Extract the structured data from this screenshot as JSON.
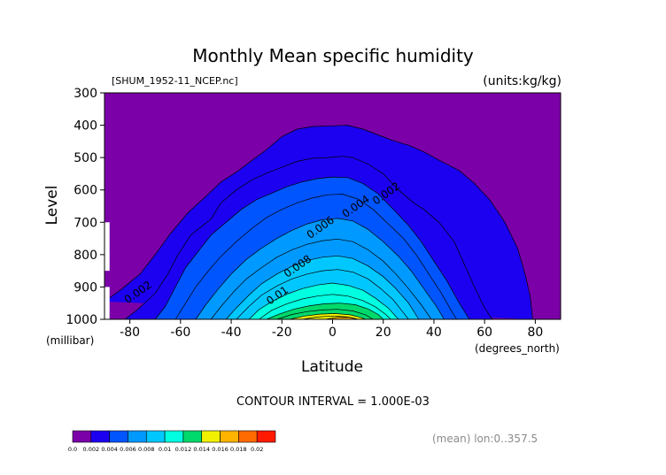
{
  "chart_data": {
    "type": "heatmap",
    "title": "Monthly Mean specific humidity",
    "source_label": "[SHUM_1952-11_NCEP.nc]",
    "units_label": "(units:kg/kg)",
    "xlabel": "Latitude",
    "xunit": "(degrees_north)",
    "ylabel": "Level",
    "yunit": "(millibar)",
    "xlim": [
      -90,
      90
    ],
    "ylim": [
      300,
      1000
    ],
    "y_inverted": true,
    "x_ticks": [
      -80,
      -60,
      -40,
      -20,
      0,
      20,
      40,
      60,
      80
    ],
    "y_ticks": [
      300,
      400,
      500,
      600,
      700,
      800,
      900,
      1000
    ],
    "contour_interval_text": "CONTOUR INTERVAL = 1.000E-03",
    "footer_note": "(mean) lon:0..357.5",
    "contour_labels": [
      {
        "text": "0.002",
        "lat": -76,
        "level": 925
      },
      {
        "text": "0.002",
        "lat": 22,
        "level": 620
      },
      {
        "text": "0.004",
        "lat": 10,
        "level": 660
      },
      {
        "text": "0.006",
        "lat": -4,
        "level": 725
      },
      {
        "text": "0.008",
        "lat": -13,
        "level": 845
      },
      {
        "text": "0.01",
        "lat": -21,
        "level": 935
      }
    ],
    "contours": [
      {
        "value": 0.001,
        "points": [
          [
            -90,
            945
          ],
          [
            -83,
            905
          ],
          [
            -76,
            860
          ],
          [
            -70,
            800
          ],
          [
            -64,
            735
          ],
          [
            -57,
            670
          ],
          [
            -50,
            620
          ],
          [
            -44,
            575
          ],
          [
            -38,
            545
          ],
          [
            -32,
            510
          ],
          [
            -26,
            475
          ],
          [
            -20,
            435
          ],
          [
            -14,
            412
          ],
          [
            -8,
            404
          ],
          [
            0,
            402
          ],
          [
            6,
            400
          ],
          [
            12,
            412
          ],
          [
            18,
            430
          ],
          [
            24,
            448
          ],
          [
            30,
            462
          ],
          [
            36,
            482
          ],
          [
            42,
            508
          ],
          [
            50,
            540
          ],
          [
            56,
            580
          ],
          [
            62,
            630
          ],
          [
            68,
            700
          ],
          [
            73,
            780
          ],
          [
            76,
            860
          ],
          [
            78,
            930
          ],
          [
            79,
            1000
          ]
        ]
      },
      {
        "value": 0.002,
        "points": [
          [
            -82,
            1000
          ],
          [
            -77,
            970
          ],
          [
            -70,
            920
          ],
          [
            -65,
            860
          ],
          [
            -61,
            800
          ],
          [
            -56,
            740
          ],
          [
            -52,
            715
          ],
          [
            -48,
            690
          ],
          [
            -44,
            640
          ],
          [
            -38,
            600
          ],
          [
            -32,
            570
          ],
          [
            -26,
            548
          ],
          [
            -20,
            530
          ],
          [
            -14,
            512
          ],
          [
            -8,
            502
          ],
          [
            -2,
            500
          ],
          [
            4,
            496
          ],
          [
            8,
            500
          ],
          [
            14,
            520
          ],
          [
            20,
            550
          ],
          [
            26,
            600
          ],
          [
            32,
            640
          ],
          [
            36,
            660
          ],
          [
            42,
            700
          ],
          [
            48,
            760
          ],
          [
            52,
            830
          ],
          [
            56,
            900
          ],
          [
            60,
            965
          ],
          [
            63,
            1000
          ]
        ]
      },
      {
        "value": 0.003,
        "points": [
          [
            -70,
            1000
          ],
          [
            -66,
            960
          ],
          [
            -62,
            900
          ],
          [
            -58,
            840
          ],
          [
            -53,
            790
          ],
          [
            -48,
            740
          ],
          [
            -42,
            700
          ],
          [
            -36,
            660
          ],
          [
            -30,
            630
          ],
          [
            -24,
            610
          ],
          [
            -18,
            590
          ],
          [
            -12,
            575
          ],
          [
            -6,
            565
          ],
          [
            0,
            560
          ],
          [
            6,
            562
          ],
          [
            12,
            580
          ],
          [
            18,
            612
          ],
          [
            24,
            660
          ],
          [
            30,
            710
          ],
          [
            35,
            760
          ],
          [
            40,
            820
          ],
          [
            45,
            880
          ],
          [
            50,
            950
          ],
          [
            54,
            1000
          ]
        ]
      },
      {
        "value": 0.004,
        "points": [
          [
            -62,
            1000
          ],
          [
            -58,
            950
          ],
          [
            -54,
            900
          ],
          [
            -49,
            850
          ],
          [
            -44,
            805
          ],
          [
            -38,
            760
          ],
          [
            -32,
            720
          ],
          [
            -26,
            685
          ],
          [
            -20,
            660
          ],
          [
            -14,
            640
          ],
          [
            -8,
            625
          ],
          [
            -2,
            615
          ],
          [
            4,
            613
          ],
          [
            10,
            628
          ],
          [
            16,
            660
          ],
          [
            22,
            705
          ],
          [
            28,
            750
          ],
          [
            33,
            800
          ],
          [
            38,
            860
          ],
          [
            43,
            920
          ],
          [
            47,
            975
          ],
          [
            49,
            1000
          ]
        ]
      },
      {
        "value": 0.005,
        "points": [
          [
            -54,
            1000
          ],
          [
            -50,
            955
          ],
          [
            -45,
            905
          ],
          [
            -40,
            860
          ],
          [
            -34,
            815
          ],
          [
            -28,
            780
          ],
          [
            -22,
            750
          ],
          [
            -16,
            725
          ],
          [
            -10,
            705
          ],
          [
            -4,
            692
          ],
          [
            2,
            688
          ],
          [
            8,
            696
          ],
          [
            14,
            722
          ],
          [
            20,
            760
          ],
          [
            26,
            805
          ],
          [
            31,
            850
          ],
          [
            36,
            905
          ],
          [
            41,
            960
          ],
          [
            44,
            1000
          ]
        ]
      },
      {
        "value": 0.006,
        "points": [
          [
            -48,
            1000
          ],
          [
            -44,
            960
          ],
          [
            -39,
            915
          ],
          [
            -34,
            875
          ],
          [
            -28,
            840
          ],
          [
            -22,
            808
          ],
          [
            -16,
            785
          ],
          [
            -10,
            768
          ],
          [
            -4,
            757
          ],
          [
            2,
            752
          ],
          [
            8,
            760
          ],
          [
            14,
            785
          ],
          [
            20,
            820
          ],
          [
            25,
            860
          ],
          [
            30,
            905
          ],
          [
            35,
            955
          ],
          [
            39,
            1000
          ]
        ]
      },
      {
        "value": 0.007,
        "points": [
          [
            -42,
            1000
          ],
          [
            -38,
            965
          ],
          [
            -33,
            925
          ],
          [
            -28,
            890
          ],
          [
            -22,
            860
          ],
          [
            -16,
            836
          ],
          [
            -10,
            818
          ],
          [
            -4,
            808
          ],
          [
            2,
            804
          ],
          [
            8,
            812
          ],
          [
            14,
            835
          ],
          [
            20,
            868
          ],
          [
            25,
            905
          ],
          [
            30,
            950
          ],
          [
            34,
            1000
          ]
        ]
      },
      {
        "value": 0.008,
        "points": [
          [
            -38,
            1000
          ],
          [
            -33,
            960
          ],
          [
            -28,
            925
          ],
          [
            -22,
            897
          ],
          [
            -16,
            875
          ],
          [
            -10,
            860
          ],
          [
            -4,
            850
          ],
          [
            2,
            846
          ],
          [
            8,
            854
          ],
          [
            14,
            875
          ],
          [
            19,
            905
          ],
          [
            24,
            940
          ],
          [
            28,
            980
          ],
          [
            30,
            1000
          ]
        ]
      },
      {
        "value": 0.009,
        "points": [
          [
            -33,
            1000
          ],
          [
            -29,
            970
          ],
          [
            -24,
            945
          ],
          [
            -18,
            922
          ],
          [
            -12,
            905
          ],
          [
            -6,
            894
          ],
          [
            0,
            888
          ],
          [
            6,
            895
          ],
          [
            12,
            910
          ],
          [
            17,
            935
          ],
          [
            22,
            965
          ],
          [
            26,
            1000
          ]
        ]
      },
      {
        "value": 0.01,
        "points": [
          [
            -29,
            1000
          ],
          [
            -24,
            972
          ],
          [
            -18,
            952
          ],
          [
            -12,
            937
          ],
          [
            -6,
            928
          ],
          [
            0,
            923
          ],
          [
            6,
            928
          ],
          [
            12,
            942
          ],
          [
            17,
            962
          ],
          [
            21,
            985
          ],
          [
            23,
            1000
          ]
        ]
      },
      {
        "value": 0.011,
        "points": [
          [
            -26,
            1000
          ],
          [
            -21,
            984
          ],
          [
            -15,
            968
          ],
          [
            -9,
            958
          ],
          [
            -3,
            952
          ],
          [
            3,
            950
          ],
          [
            9,
            955
          ],
          [
            14,
            968
          ],
          [
            18,
            985
          ],
          [
            20,
            1000
          ]
        ]
      },
      {
        "value": 0.012,
        "points": [
          [
            -22,
            1000
          ],
          [
            -16,
            985
          ],
          [
            -10,
            976
          ],
          [
            -4,
            971
          ],
          [
            2,
            969
          ],
          [
            8,
            974
          ],
          [
            13,
            986
          ],
          [
            16,
            1000
          ]
        ]
      },
      {
        "value": 0.013,
        "points": [
          [
            -17,
            1000
          ],
          [
            -11,
            990
          ],
          [
            -5,
            984
          ],
          [
            1,
            982
          ],
          [
            7,
            986
          ],
          [
            11,
            994
          ],
          [
            13,
            1000
          ]
        ]
      },
      {
        "value": 0.014,
        "points": [
          [
            -12,
            1000
          ],
          [
            -6,
            993
          ],
          [
            0,
            990
          ],
          [
            6,
            993
          ],
          [
            10,
            1000
          ]
        ]
      },
      {
        "value": 0.015,
        "points": [
          [
            -3,
            1000
          ],
          [
            2,
            994
          ],
          [
            7,
            994
          ],
          [
            10,
            1000
          ]
        ]
      }
    ],
    "colorbar": {
      "labels": [
        "0.0",
        "0.002",
        "0.004",
        "0.006",
        "0.008",
        "0.01",
        "0.012",
        "0.014",
        "0.016",
        "0.018",
        "0.02"
      ],
      "colors": [
        "#7b00a8",
        "#1c00f0",
        "#0055ff",
        "#0099ff",
        "#00c8ff",
        "#00ffe0",
        "#00d96c",
        "#f0f000",
        "#ffb400",
        "#ff6a00",
        "#ff1a00"
      ]
    },
    "missing_region": {
      "lat_max": -88,
      "levels": [
        700,
        850,
        900,
        1000
      ]
    }
  }
}
